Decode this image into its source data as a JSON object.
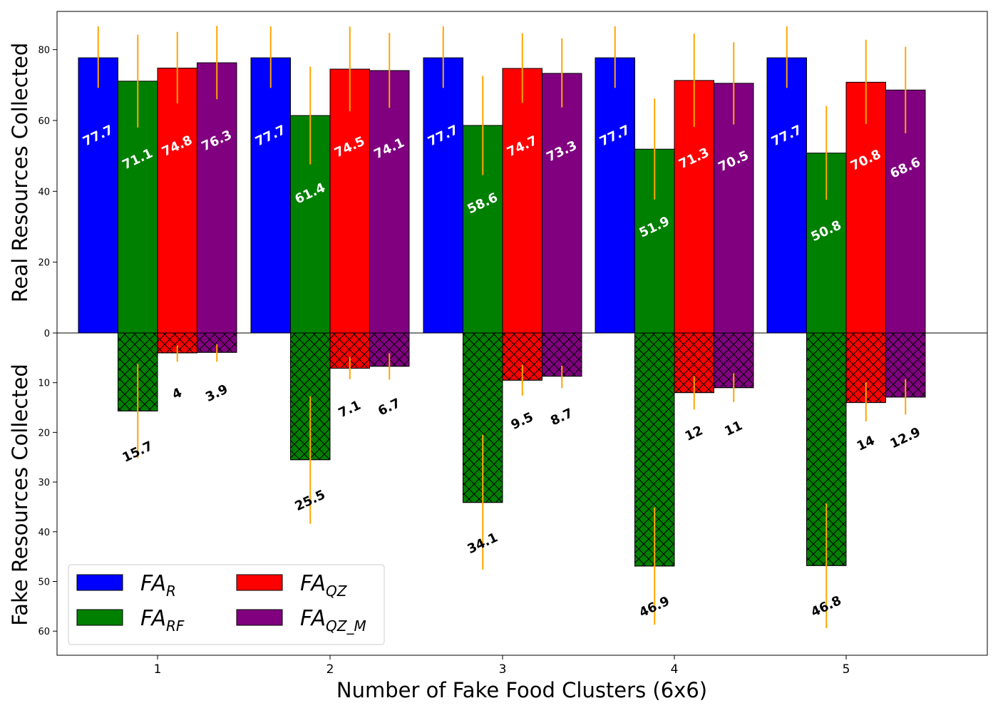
{
  "chart_data": {
    "type": "bar",
    "xlabel": "Number of Fake Food Clusters (6x6)",
    "ylabel_top": "Real Resources Collected",
    "ylabel_bottom": "Fake Resources Collected",
    "categories": [
      "1",
      "2",
      "3",
      "4",
      "5"
    ],
    "ylim_top": [
      0,
      90
    ],
    "yticks_top": [
      "0",
      "20",
      "40",
      "60",
      "80"
    ],
    "ylim_bottom": [
      0,
      65
    ],
    "yticks_bottom": [
      "10",
      "20",
      "30",
      "40",
      "50",
      "60"
    ],
    "grid": false,
    "legend_position": "bottom-left",
    "series": [
      {
        "name": "FA",
        "sub": "R",
        "color": "#0000ff",
        "label_color": "#ffffff",
        "real": [
          77.7,
          77.7,
          77.7,
          77.7,
          77.7
        ],
        "real_labels": [
          "77.7",
          "77.7",
          "77.7",
          "77.7",
          "77.7"
        ],
        "real_err_low": [
          69.2,
          69.2,
          69.2,
          69.2,
          69.2
        ],
        "real_err_high": [
          86.6,
          86.6,
          86.6,
          86.6,
          86.6
        ],
        "fake": [
          0,
          0,
          0,
          0,
          0
        ],
        "fake_labels": [
          "",
          "",
          "",
          "",
          ""
        ],
        "fake_err_low": [
          null,
          null,
          null,
          null,
          null
        ],
        "fake_err_high": [
          null,
          null,
          null,
          null,
          null
        ]
      },
      {
        "name": "FA",
        "sub": "RF",
        "color": "#008000",
        "label_color": "#ffffff",
        "real": [
          71.1,
          61.4,
          58.6,
          51.9,
          50.8
        ],
        "real_labels": [
          "71.1",
          "61.4",
          "58.6",
          "51.9",
          "50.8"
        ],
        "real_err_low": [
          58.0,
          47.6,
          44.6,
          37.7,
          37.6
        ],
        "real_err_high": [
          84.2,
          75.2,
          72.6,
          66.2,
          64.1
        ],
        "fake": [
          15.7,
          25.5,
          34.1,
          46.9,
          46.8
        ],
        "fake_labels": [
          "15.7",
          "25.5",
          "34.1",
          "46.9",
          "46.8"
        ],
        "fake_err_low": [
          6.2,
          12.7,
          20.5,
          35.1,
          34.3
        ],
        "fake_err_high": [
          25.2,
          38.4,
          47.6,
          58.7,
          59.4
        ]
      },
      {
        "name": "FA",
        "sub": "QZ",
        "color": "#ff0000",
        "label_color": "#ffffff",
        "real": [
          74.8,
          74.5,
          74.7,
          71.3,
          70.8
        ],
        "real_labels": [
          "74.8",
          "74.5",
          "74.7",
          "71.3",
          "70.8"
        ],
        "real_err_low": [
          64.8,
          62.6,
          65.0,
          58.2,
          59.0
        ],
        "real_err_high": [
          85.0,
          86.5,
          84.6,
          84.5,
          82.8
        ],
        "fake": [
          4.0,
          7.1,
          9.5,
          12.0,
          14.0
        ],
        "fake_labels": [
          "4",
          "7.1",
          "9.5",
          "12",
          "14"
        ],
        "fake_err_low": [
          2.5,
          4.8,
          6.4,
          8.7,
          9.9
        ],
        "fake_err_high": [
          5.8,
          9.3,
          12.6,
          15.4,
          17.8
        ]
      },
      {
        "name": "FA",
        "sub": "QZ_M",
        "color": "#800080",
        "label_color": "#ffffff",
        "real": [
          76.3,
          74.1,
          73.3,
          70.5,
          68.6
        ],
        "real_labels": [
          "76.3",
          "74.1",
          "73.3",
          "70.5",
          "68.6"
        ],
        "real_err_low": [
          66.0,
          63.6,
          63.7,
          58.9,
          56.4
        ],
        "real_err_high": [
          86.7,
          84.7,
          83.2,
          82.1,
          80.8
        ],
        "fake": [
          3.9,
          6.7,
          8.7,
          11.0,
          12.9
        ],
        "fake_labels": [
          "3.9",
          "6.7",
          "8.7",
          "11",
          "12.9"
        ],
        "fake_err_low": [
          2.3,
          4.1,
          6.6,
          8.1,
          9.3
        ],
        "fake_err_high": [
          5.8,
          9.4,
          11.1,
          13.9,
          16.4
        ]
      }
    ],
    "error_bar_color": "#ffa500"
  }
}
